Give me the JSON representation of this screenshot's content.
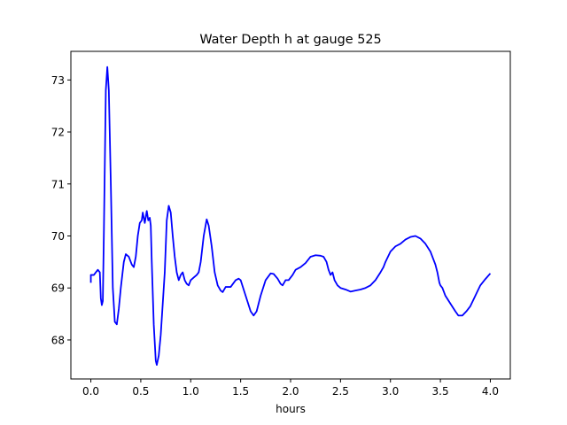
{
  "chart_data": {
    "type": "line",
    "title": "Water Depth h at gauge 525",
    "xlabel": "hours",
    "ylabel": "",
    "xlim": [
      -0.2,
      4.2
    ],
    "ylim": [
      67.25,
      73.55
    ],
    "x_ticks": [
      0.0,
      0.5,
      1.0,
      1.5,
      2.0,
      2.5,
      3.0,
      3.5,
      4.0
    ],
    "x_tick_labels": [
      "0.0",
      "0.5",
      "1.0",
      "1.5",
      "2.0",
      "2.5",
      "3.0",
      "3.5",
      "4.0"
    ],
    "y_ticks": [
      68,
      69,
      70,
      71,
      72,
      73
    ],
    "y_tick_labels": [
      "68",
      "69",
      "70",
      "71",
      "72",
      "73"
    ],
    "grid": false,
    "series": [
      {
        "color": "#0000ff",
        "points": [
          [
            0.0,
            69.1
          ],
          [
            0.0,
            69.25
          ],
          [
            0.03,
            69.25
          ],
          [
            0.05,
            69.3
          ],
          [
            0.07,
            69.35
          ],
          [
            0.09,
            69.3
          ],
          [
            0.1,
            68.8
          ],
          [
            0.11,
            68.67
          ],
          [
            0.12,
            68.75
          ],
          [
            0.13,
            70.0
          ],
          [
            0.15,
            72.8
          ],
          [
            0.165,
            73.25
          ],
          [
            0.18,
            72.8
          ],
          [
            0.2,
            71.0
          ],
          [
            0.22,
            69.0
          ],
          [
            0.24,
            68.35
          ],
          [
            0.26,
            68.3
          ],
          [
            0.28,
            68.6
          ],
          [
            0.3,
            69.0
          ],
          [
            0.33,
            69.5
          ],
          [
            0.35,
            69.65
          ],
          [
            0.38,
            69.6
          ],
          [
            0.41,
            69.45
          ],
          [
            0.43,
            69.4
          ],
          [
            0.45,
            69.6
          ],
          [
            0.47,
            70.0
          ],
          [
            0.49,
            70.25
          ],
          [
            0.51,
            70.3
          ],
          [
            0.52,
            70.45
          ],
          [
            0.54,
            70.25
          ],
          [
            0.56,
            70.48
          ],
          [
            0.575,
            70.3
          ],
          [
            0.59,
            70.35
          ],
          [
            0.6,
            70.2
          ],
          [
            0.61,
            69.5
          ],
          [
            0.63,
            68.3
          ],
          [
            0.65,
            67.6
          ],
          [
            0.66,
            67.52
          ],
          [
            0.68,
            67.7
          ],
          [
            0.7,
            68.1
          ],
          [
            0.72,
            68.7
          ],
          [
            0.74,
            69.3
          ],
          [
            0.76,
            70.3
          ],
          [
            0.78,
            70.58
          ],
          [
            0.8,
            70.45
          ],
          [
            0.82,
            70.0
          ],
          [
            0.84,
            69.6
          ],
          [
            0.86,
            69.3
          ],
          [
            0.88,
            69.15
          ],
          [
            0.9,
            69.25
          ],
          [
            0.92,
            69.3
          ],
          [
            0.94,
            69.15
          ],
          [
            0.96,
            69.08
          ],
          [
            0.98,
            69.05
          ],
          [
            1.0,
            69.15
          ],
          [
            1.03,
            69.2
          ],
          [
            1.06,
            69.25
          ],
          [
            1.08,
            69.3
          ],
          [
            1.1,
            69.5
          ],
          [
            1.13,
            70.0
          ],
          [
            1.16,
            70.32
          ],
          [
            1.18,
            70.2
          ],
          [
            1.21,
            69.8
          ],
          [
            1.24,
            69.3
          ],
          [
            1.27,
            69.05
          ],
          [
            1.3,
            68.95
          ],
          [
            1.32,
            68.92
          ],
          [
            1.35,
            69.02
          ],
          [
            1.4,
            69.02
          ],
          [
            1.45,
            69.15
          ],
          [
            1.48,
            69.18
          ],
          [
            1.5,
            69.15
          ],
          [
            1.55,
            68.85
          ],
          [
            1.6,
            68.55
          ],
          [
            1.63,
            68.47
          ],
          [
            1.66,
            68.55
          ],
          [
            1.7,
            68.85
          ],
          [
            1.75,
            69.15
          ],
          [
            1.8,
            69.28
          ],
          [
            1.83,
            69.27
          ],
          [
            1.87,
            69.18
          ],
          [
            1.9,
            69.08
          ],
          [
            1.92,
            69.05
          ],
          [
            1.95,
            69.15
          ],
          [
            1.98,
            69.15
          ],
          [
            2.02,
            69.25
          ],
          [
            2.05,
            69.35
          ],
          [
            2.1,
            69.4
          ],
          [
            2.15,
            69.48
          ],
          [
            2.2,
            69.6
          ],
          [
            2.25,
            69.63
          ],
          [
            2.3,
            69.62
          ],
          [
            2.33,
            69.6
          ],
          [
            2.36,
            69.5
          ],
          [
            2.38,
            69.35
          ],
          [
            2.4,
            69.25
          ],
          [
            2.42,
            69.3
          ],
          [
            2.44,
            69.15
          ],
          [
            2.47,
            69.05
          ],
          [
            2.5,
            69.0
          ],
          [
            2.55,
            68.97
          ],
          [
            2.6,
            68.93
          ],
          [
            2.65,
            68.95
          ],
          [
            2.7,
            68.97
          ],
          [
            2.75,
            69.0
          ],
          [
            2.8,
            69.05
          ],
          [
            2.85,
            69.15
          ],
          [
            2.9,
            69.3
          ],
          [
            2.93,
            69.4
          ],
          [
            2.95,
            69.5
          ],
          [
            3.0,
            69.7
          ],
          [
            3.05,
            69.8
          ],
          [
            3.1,
            69.85
          ],
          [
            3.15,
            69.93
          ],
          [
            3.2,
            69.98
          ],
          [
            3.25,
            70.0
          ],
          [
            3.3,
            69.95
          ],
          [
            3.35,
            69.85
          ],
          [
            3.4,
            69.7
          ],
          [
            3.45,
            69.45
          ],
          [
            3.47,
            69.3
          ],
          [
            3.49,
            69.1
          ],
          [
            3.5,
            69.05
          ],
          [
            3.52,
            69.0
          ],
          [
            3.55,
            68.85
          ],
          [
            3.6,
            68.7
          ],
          [
            3.65,
            68.55
          ],
          [
            3.68,
            68.47
          ],
          [
            3.72,
            68.47
          ],
          [
            3.76,
            68.55
          ],
          [
            3.8,
            68.65
          ],
          [
            3.85,
            68.85
          ],
          [
            3.9,
            69.05
          ],
          [
            3.95,
            69.17
          ],
          [
            4.0,
            69.28
          ]
        ]
      }
    ]
  }
}
